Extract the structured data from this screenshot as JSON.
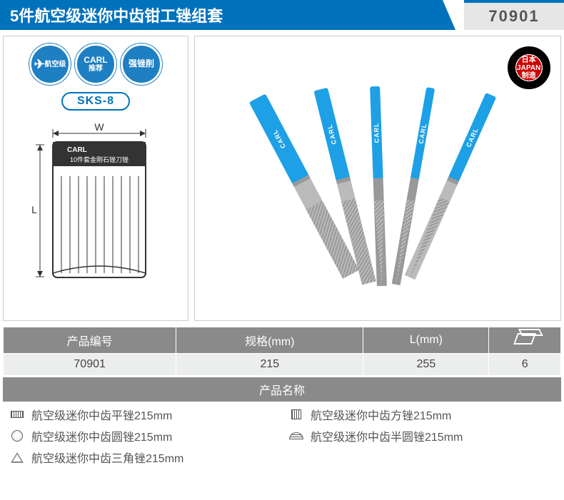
{
  "header": {
    "title": "5件航空级迷你中齿钳工锉组套",
    "product_code": "70901"
  },
  "left_panel": {
    "badges": [
      {
        "name": "aviation-badge",
        "top": "",
        "main": "航空级",
        "has_wing": true
      },
      {
        "name": "carl-badge",
        "top": "CARL",
        "main": "推荐",
        "has_wing": false
      },
      {
        "name": "strong-badge",
        "top": "",
        "main": "强锉削",
        "has_wing": false
      }
    ],
    "material_pill": "SKS-8",
    "diagram": {
      "w_label": "W",
      "l_label": "L",
      "pack_brand": "CARL",
      "pack_text": "10件套金刚石锉刀锉"
    }
  },
  "right_panel": {
    "japan_badge_text": "日本\nJAPAN\n制造",
    "file_brand": "CARL"
  },
  "spec_table": {
    "headers": [
      "产品编号",
      "规格(mm)",
      "L(mm)",
      ""
    ],
    "row": [
      "70901",
      "215",
      "255",
      "6"
    ]
  },
  "names": {
    "header": "产品名称",
    "items": [
      {
        "shape": "flat",
        "label": "航空级迷你中齿平锉215mm"
      },
      {
        "shape": "square",
        "label": "航空级迷你中齿方锉215mm"
      },
      {
        "shape": "round",
        "label": "航空级迷你中齿圆锉215mm"
      },
      {
        "shape": "half",
        "label": "航空级迷你中齿半圆锉215mm"
      },
      {
        "shape": "tri",
        "label": "航空级迷你中齿三角锉215mm"
      }
    ]
  },
  "colors": {
    "brand_blue": "#0072bc",
    "light_blue": "#1ea0e6",
    "header_gray": "#8a8a8a",
    "cell_gray": "#eceded"
  }
}
